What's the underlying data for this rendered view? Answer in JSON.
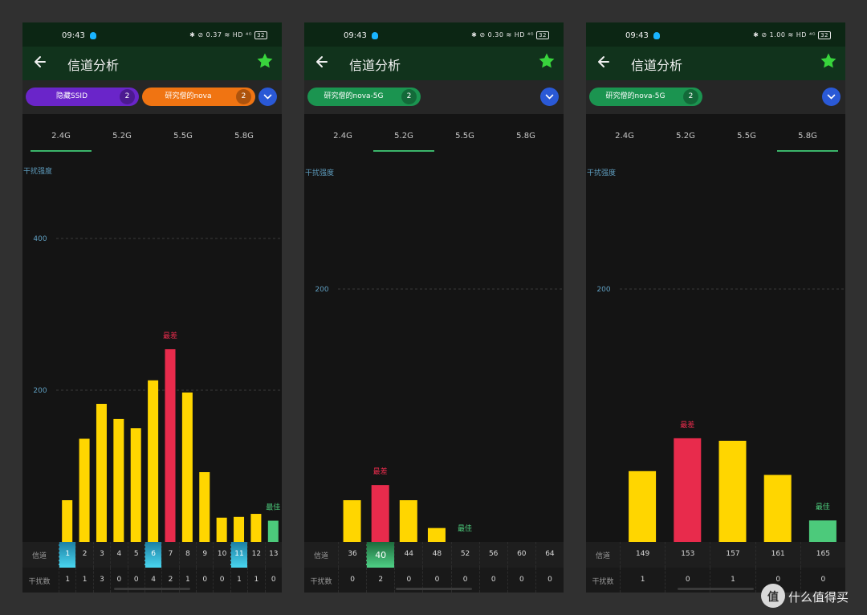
{
  "watermark_text": "什么值得买",
  "watermark_badge": "值",
  "colors": {
    "bar": "#ffd600",
    "worst": "#e82b4c",
    "best": "#4cca7b",
    "grid": "#3a3a3a",
    "axis_label": "#5f9ec0"
  },
  "screens": [
    {
      "status": {
        "time": "09:43",
        "icons_text": "✱ ⊘ 0.37 ≋ HD ⁴ᴳ",
        "battery": "32"
      },
      "appbar": {
        "title": "信道分析"
      },
      "chips": [
        {
          "label": "隐藏SSID",
          "count": "2",
          "color": "#6a25c9"
        },
        {
          "label": "研究僧的nova",
          "count": "2",
          "color": "#f07412"
        }
      ],
      "tabs": [
        "2.4G",
        "5.2G",
        "5.5G",
        "5.8G"
      ],
      "active_tab": 0,
      "axis_title": "干扰强度",
      "ticks": [
        {
          "value": 200,
          "label": "200"
        },
        {
          "value": 400,
          "label": "400"
        }
      ],
      "worst_label": "最差",
      "best_label": "最佳",
      "row_labels": {
        "channel": "信道",
        "count": "干扰数"
      },
      "chart_data": {
        "type": "bar",
        "ylim": [
          0,
          400
        ],
        "ylabel": "干扰强度",
        "categories": [
          "1",
          "2",
          "3",
          "4",
          "5",
          "6",
          "7",
          "8",
          "9",
          "10",
          "11",
          "12",
          "13"
        ],
        "values": [
          55,
          136,
          182,
          162,
          150,
          213,
          254,
          197,
          92,
          32,
          33,
          37,
          28
        ],
        "worst_index": 6,
        "best_index": 12
      },
      "highlighted_channels": [
        0,
        5,
        10
      ],
      "counts": [
        "1",
        "1",
        "3",
        "0",
        "0",
        "4",
        "2",
        "1",
        "0",
        "0",
        "1",
        "1",
        "0"
      ]
    },
    {
      "status": {
        "time": "09:43",
        "icons_text": "✱ ⊘ 0.30 ≋ HD ⁴ᴳ",
        "battery": "32"
      },
      "appbar": {
        "title": "信道分析"
      },
      "chips": [
        {
          "label": "研究僧的nova-5G",
          "count": "2",
          "color": "#1b9450"
        }
      ],
      "tabs": [
        "2.4G",
        "5.2G",
        "5.5G",
        "5.8G"
      ],
      "active_tab": 1,
      "axis_title": "干扰强度",
      "ticks": [
        {
          "value": 200,
          "label": "200"
        }
      ],
      "worst_label": "最差",
      "best_label": "最佳",
      "row_labels": {
        "channel": "信道",
        "count": "干扰数"
      },
      "chart_data": {
        "type": "bar",
        "ylim": [
          0,
          200
        ],
        "ylabel": "干扰强度",
        "categories": [
          "36",
          "40",
          "44",
          "48",
          "52",
          "56",
          "60",
          "64"
        ],
        "values": [
          33,
          45,
          33,
          11,
          0,
          0,
          0,
          0
        ],
        "worst_index": 1,
        "best_index": 4
      },
      "highlighted_green": [
        1
      ],
      "counts": [
        "0",
        "2",
        "0",
        "0",
        "0",
        "0",
        "0",
        "0"
      ]
    },
    {
      "status": {
        "time": "09:43",
        "icons_text": "✱ ⊘ 1.00 ≋ HD ⁴ᴳ",
        "battery": "32"
      },
      "appbar": {
        "title": "信道分析"
      },
      "chips": [
        {
          "label": "研究僧的nova-5G",
          "count": "2",
          "color": "#1b9450"
        }
      ],
      "tabs": [
        "2.4G",
        "5.2G",
        "5.5G",
        "5.8G"
      ],
      "active_tab": 3,
      "axis_title": "干扰强度",
      "ticks": [
        {
          "value": 200,
          "label": "200"
        }
      ],
      "worst_label": "最差",
      "best_label": "最佳",
      "row_labels": {
        "channel": "信道",
        "count": "干扰数"
      },
      "chart_data": {
        "type": "bar",
        "ylim": [
          0,
          200
        ],
        "ylabel": "干扰强度",
        "categories": [
          "149",
          "153",
          "157",
          "161",
          "165"
        ],
        "values": [
          56,
          82,
          80,
          53,
          17
        ],
        "worst_index": 1,
        "best_index": 4
      },
      "counts": [
        "1",
        "0",
        "1",
        "0",
        "0"
      ]
    }
  ]
}
